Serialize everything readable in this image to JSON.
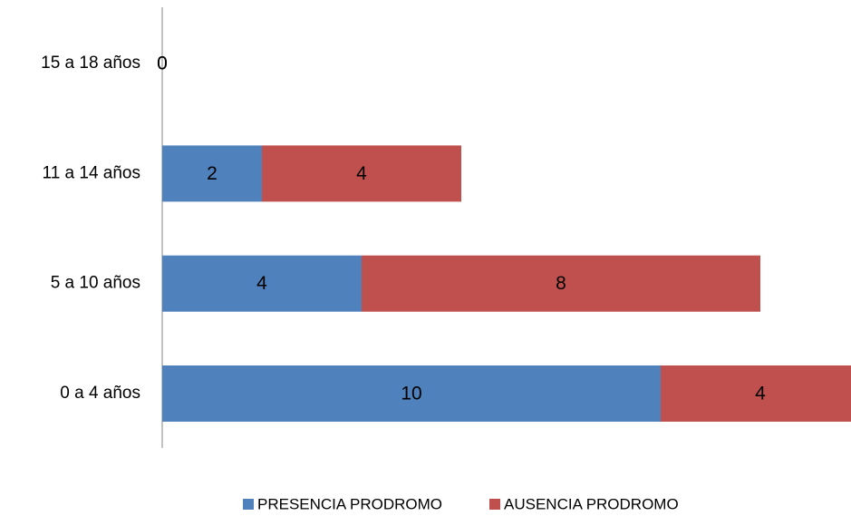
{
  "chart_data": {
    "type": "bar",
    "orientation": "horizontal",
    "stacked": true,
    "categories": [
      "0 a 4 años",
      "5 a 10 años",
      "11 a 14 años",
      "15 a 18 años"
    ],
    "series": [
      {
        "name": "PRESENCIA PRODROMO",
        "color": "#4f81bd",
        "values": [
          10,
          4,
          2,
          0
        ]
      },
      {
        "name": "AUSENCIA PRODROMO",
        "color": "#c0504d",
        "values": [
          4,
          8,
          4,
          0
        ]
      }
    ],
    "xlim": [
      0,
      14
    ],
    "legend": "bottom"
  }
}
